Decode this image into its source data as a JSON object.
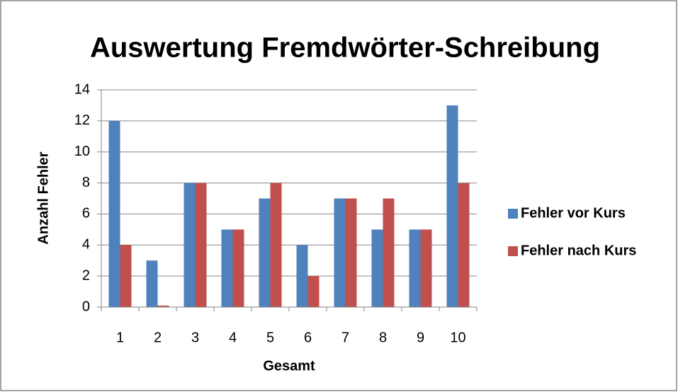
{
  "chart_data": {
    "type": "bar",
    "title": "Auswertung Fremdwörter-Schreibung",
    "x_label": "Gesamt",
    "y_label": "Anzahl Fehler",
    "categories": [
      "1",
      "2",
      "3",
      "4",
      "5",
      "6",
      "7",
      "8",
      "9",
      "10"
    ],
    "series": [
      {
        "name": "Fehler vor Kurs",
        "color": "#4f81bd",
        "values": [
          12,
          3,
          8,
          5,
          7,
          4,
          7,
          5,
          5,
          13
        ]
      },
      {
        "name": "Fehler nach Kurs",
        "color": "#c0504d",
        "values": [
          4,
          0.1,
          8,
          5,
          8,
          2,
          7,
          7,
          5,
          8
        ]
      }
    ],
    "ylim": [
      0,
      14
    ],
    "yticks": [
      0,
      2,
      4,
      6,
      8,
      10,
      12,
      14
    ],
    "grid": true,
    "legend": "right"
  }
}
